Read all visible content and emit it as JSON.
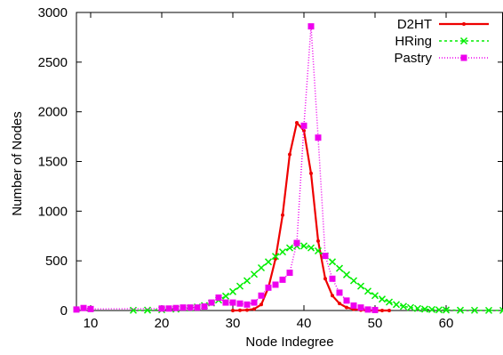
{
  "chart_data": {
    "type": "line",
    "title": "",
    "xlabel": "Node Indegree",
    "ylabel": "Number of Nodes",
    "xlim": [
      8,
      68
    ],
    "ylim": [
      0,
      3000
    ],
    "x_ticks": [
      10,
      20,
      30,
      40,
      50,
      60
    ],
    "y_ticks": [
      0,
      500,
      1000,
      1500,
      2000,
      2500,
      3000
    ],
    "x_tick_labels": [
      "10",
      "20",
      "30",
      "40",
      "50",
      "60"
    ],
    "y_tick_labels": [
      "0",
      "500",
      "1000",
      "1500",
      "2000",
      "2500",
      "3000"
    ],
    "grid": false,
    "legend_position": "top-right",
    "series": [
      {
        "name": "D2HT",
        "color": "#ee0000",
        "marker": "dot",
        "dash": "",
        "points": [
          [
            30,
            0
          ],
          [
            31,
            2
          ],
          [
            32,
            5
          ],
          [
            33,
            15
          ],
          [
            34,
            60
          ],
          [
            35,
            230
          ],
          [
            36,
            520
          ],
          [
            37,
            960
          ],
          [
            38,
            1570
          ],
          [
            39,
            1890
          ],
          [
            40,
            1810
          ],
          [
            41,
            1380
          ],
          [
            42,
            700
          ],
          [
            43,
            320
          ],
          [
            44,
            150
          ],
          [
            45,
            70
          ],
          [
            46,
            30
          ],
          [
            47,
            12
          ],
          [
            48,
            5
          ],
          [
            49,
            2
          ],
          [
            50,
            1
          ],
          [
            51,
            0
          ],
          [
            52,
            0
          ]
        ]
      },
      {
        "name": "HRing",
        "color": "#00ee00",
        "marker": "x",
        "dash": "3,3",
        "points": [
          [
            16,
            2
          ],
          [
            18,
            4
          ],
          [
            20,
            8
          ],
          [
            22,
            14
          ],
          [
            24,
            25
          ],
          [
            25,
            35
          ],
          [
            26,
            50
          ],
          [
            27,
            75
          ],
          [
            28,
            105
          ],
          [
            29,
            145
          ],
          [
            30,
            190
          ],
          [
            31,
            245
          ],
          [
            32,
            300
          ],
          [
            33,
            365
          ],
          [
            34,
            430
          ],
          [
            35,
            490
          ],
          [
            36,
            545
          ],
          [
            37,
            590
          ],
          [
            38,
            630
          ],
          [
            39,
            648
          ],
          [
            40,
            650
          ],
          [
            41,
            630
          ],
          [
            42,
            600
          ],
          [
            43,
            550
          ],
          [
            44,
            490
          ],
          [
            45,
            425
          ],
          [
            46,
            360
          ],
          [
            47,
            300
          ],
          [
            48,
            245
          ],
          [
            49,
            195
          ],
          [
            50,
            150
          ],
          [
            51,
            115
          ],
          [
            52,
            85
          ],
          [
            53,
            60
          ],
          [
            54,
            42
          ],
          [
            55,
            30
          ],
          [
            56,
            20
          ],
          [
            57,
            14
          ],
          [
            58,
            10
          ],
          [
            59,
            7
          ],
          [
            60,
            5
          ],
          [
            62,
            3
          ],
          [
            64,
            2
          ],
          [
            66,
            1
          ],
          [
            68,
            1
          ]
        ]
      },
      {
        "name": "Pastry",
        "color": "#ee00ee",
        "marker": "square",
        "dash": "1,2",
        "points": [
          [
            8,
            10
          ],
          [
            9,
            25
          ],
          [
            10,
            15
          ],
          [
            20,
            20
          ],
          [
            21,
            20
          ],
          [
            22,
            25
          ],
          [
            23,
            30
          ],
          [
            24,
            30
          ],
          [
            25,
            30
          ],
          [
            26,
            40
          ],
          [
            27,
            80
          ],
          [
            28,
            130
          ],
          [
            29,
            80
          ],
          [
            30,
            80
          ],
          [
            31,
            70
          ],
          [
            32,
            60
          ],
          [
            33,
            80
          ],
          [
            34,
            150
          ],
          [
            35,
            230
          ],
          [
            36,
            260
          ],
          [
            37,
            310
          ],
          [
            38,
            380
          ],
          [
            39,
            680
          ],
          [
            40,
            1860
          ],
          [
            41,
            2860
          ],
          [
            42,
            1740
          ],
          [
            43,
            550
          ],
          [
            44,
            320
          ],
          [
            45,
            180
          ],
          [
            46,
            100
          ],
          [
            47,
            50
          ],
          [
            48,
            30
          ],
          [
            49,
            10
          ],
          [
            50,
            5
          ]
        ]
      }
    ]
  }
}
